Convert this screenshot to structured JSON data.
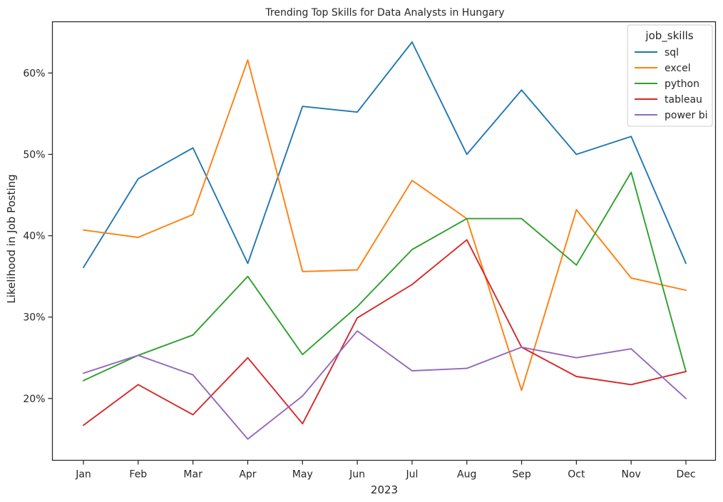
{
  "chart_data": {
    "type": "line",
    "title": "Trending Top Skills for Data Analysts in Hungary",
    "xlabel": "2023",
    "ylabel": "Likelihood in Job Posting",
    "categories": [
      "Jan",
      "Feb",
      "Mar",
      "Apr",
      "May",
      "Jun",
      "Jul",
      "Aug",
      "Sep",
      "Oct",
      "Nov",
      "Dec"
    ],
    "yticks": [
      20,
      30,
      40,
      50,
      60
    ],
    "ytick_labels": [
      "20%",
      "30%",
      "40%",
      "50%",
      "60%"
    ],
    "ylim": [
      12.4,
      66.3
    ],
    "grid": false,
    "legend": {
      "title": "job_skills",
      "placement": "top-right"
    },
    "series": [
      {
        "name": "sql",
        "color": "#1f77b4",
        "values": [
          36.1,
          47.0,
          50.8,
          36.6,
          55.9,
          55.2,
          63.8,
          50.0,
          57.9,
          50.0,
          52.2,
          36.6
        ]
      },
      {
        "name": "excel",
        "color": "#ff7f0e",
        "values": [
          40.7,
          39.8,
          42.6,
          61.6,
          35.6,
          35.8,
          46.8,
          42.1,
          21.0,
          43.2,
          34.8,
          33.3
        ]
      },
      {
        "name": "python",
        "color": "#2ca02c",
        "values": [
          22.2,
          25.3,
          27.8,
          35.0,
          25.4,
          31.3,
          38.3,
          42.1,
          42.1,
          36.4,
          47.8,
          23.3
        ]
      },
      {
        "name": "tableau",
        "color": "#d62728",
        "values": [
          16.7,
          21.7,
          18.0,
          25.0,
          16.9,
          29.9,
          34.0,
          39.5,
          26.3,
          22.7,
          21.7,
          23.3
        ]
      },
      {
        "name": "power bi",
        "color": "#9467bd",
        "values": [
          23.1,
          25.3,
          22.9,
          15.0,
          20.3,
          28.3,
          23.4,
          23.7,
          26.3,
          25.0,
          26.1,
          20.0
        ]
      }
    ]
  }
}
